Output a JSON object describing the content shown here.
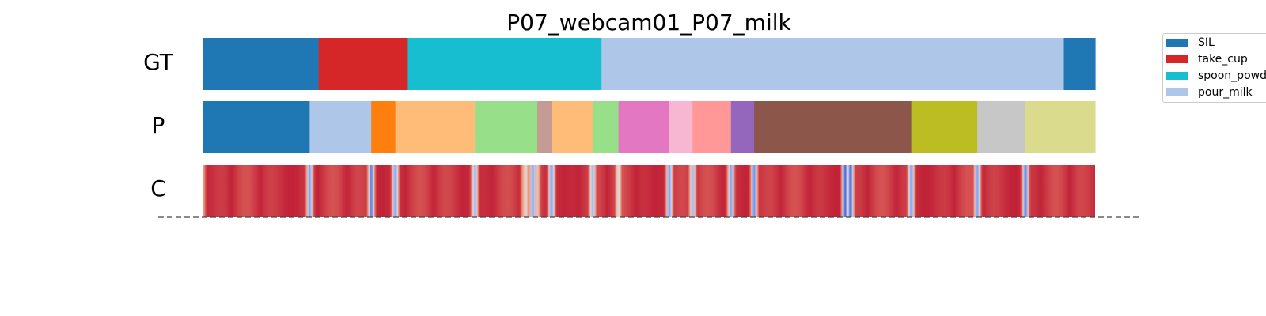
{
  "chart_data": {
    "type": "segmentation",
    "title": "P07_webcam01_P07_milk",
    "rows": [
      {
        "label": "GT",
        "segments": [
          {
            "action": "SIL",
            "start": 0.0,
            "end": 0.13,
            "color": "#1f77b4"
          },
          {
            "action": "take_cup",
            "start": 0.13,
            "end": 0.23,
            "color": "#d62728"
          },
          {
            "action": "spoon_powder",
            "start": 0.23,
            "end": 0.447,
            "color": "#17becf"
          },
          {
            "action": "pour_milk",
            "start": 0.447,
            "end": 0.965,
            "color": "#aec7e8"
          },
          {
            "action": "SIL",
            "start": 0.965,
            "end": 1.0,
            "color": "#1f77b4"
          }
        ]
      },
      {
        "label": "P",
        "segments": [
          {
            "action": "SIL",
            "start": 0.0,
            "end": 0.12,
            "color": "#1f77b4"
          },
          {
            "action": "",
            "start": 0.12,
            "end": 0.189,
            "color": "#aec7e8"
          },
          {
            "action": "",
            "start": 0.189,
            "end": 0.216,
            "color": "#ff7f0e"
          },
          {
            "action": "",
            "start": 0.216,
            "end": 0.305,
            "color": "#ffbb78"
          },
          {
            "action": "",
            "start": 0.305,
            "end": 0.375,
            "color": "#98df8a"
          },
          {
            "action": "",
            "start": 0.375,
            "end": 0.391,
            "color": "#c49c94"
          },
          {
            "action": "",
            "start": 0.391,
            "end": 0.437,
            "color": "#ffbb78"
          },
          {
            "action": "",
            "start": 0.437,
            "end": 0.466,
            "color": "#98df8a"
          },
          {
            "action": "",
            "start": 0.466,
            "end": 0.523,
            "color": "#e377c2"
          },
          {
            "action": "",
            "start": 0.523,
            "end": 0.549,
            "color": "#f7b6d2"
          },
          {
            "action": "",
            "start": 0.549,
            "end": 0.592,
            "color": "#ff9896"
          },
          {
            "action": "",
            "start": 0.592,
            "end": 0.618,
            "color": "#9467bd"
          },
          {
            "action": "",
            "start": 0.618,
            "end": 0.794,
            "color": "#8c564b"
          },
          {
            "action": "",
            "start": 0.794,
            "end": 0.868,
            "color": "#bcbd22"
          },
          {
            "action": "",
            "start": 0.868,
            "end": 0.922,
            "color": "#c7c7c7"
          },
          {
            "action": "",
            "start": 0.922,
            "end": 1.0,
            "color": "#dbdb8d"
          }
        ]
      },
      {
        "label": "C",
        "colormap": "coolwarm",
        "base_value": 0.95,
        "dips": [
          {
            "pos": 0.0,
            "value": 0.7
          },
          {
            "pos": 0.12,
            "value": 0.2
          },
          {
            "pos": 0.189,
            "value": 0.1
          },
          {
            "pos": 0.216,
            "value": 0.2
          },
          {
            "pos": 0.305,
            "value": 0.3
          },
          {
            "pos": 0.36,
            "value": 0.7
          },
          {
            "pos": 0.362,
            "value": 0.5
          },
          {
            "pos": 0.37,
            "value": 0.2
          },
          {
            "pos": 0.375,
            "value": 0.6
          },
          {
            "pos": 0.391,
            "value": 0.2
          },
          {
            "pos": 0.437,
            "value": 0.3
          },
          {
            "pos": 0.466,
            "value": 0.5
          },
          {
            "pos": 0.523,
            "value": 0.2
          },
          {
            "pos": 0.549,
            "value": 0.3
          },
          {
            "pos": 0.592,
            "value": 0.2
          },
          {
            "pos": 0.618,
            "value": 0.15
          },
          {
            "pos": 0.72,
            "value": 0.05
          },
          {
            "pos": 0.726,
            "value": 0.05
          },
          {
            "pos": 0.794,
            "value": 0.2
          },
          {
            "pos": 0.868,
            "value": 0.2
          },
          {
            "pos": 0.922,
            "value": 0.1
          }
        ]
      }
    ],
    "legend": [
      {
        "label": "SIL",
        "color": "#1f77b4"
      },
      {
        "label": "take_cup",
        "color": "#d62728"
      },
      {
        "label": "spoon_powd",
        "color": "#17becf"
      },
      {
        "label": "pour_milk",
        "color": "#aec7e8"
      }
    ],
    "legend_placement": "top-right, clipped",
    "baseline": "dashed"
  }
}
